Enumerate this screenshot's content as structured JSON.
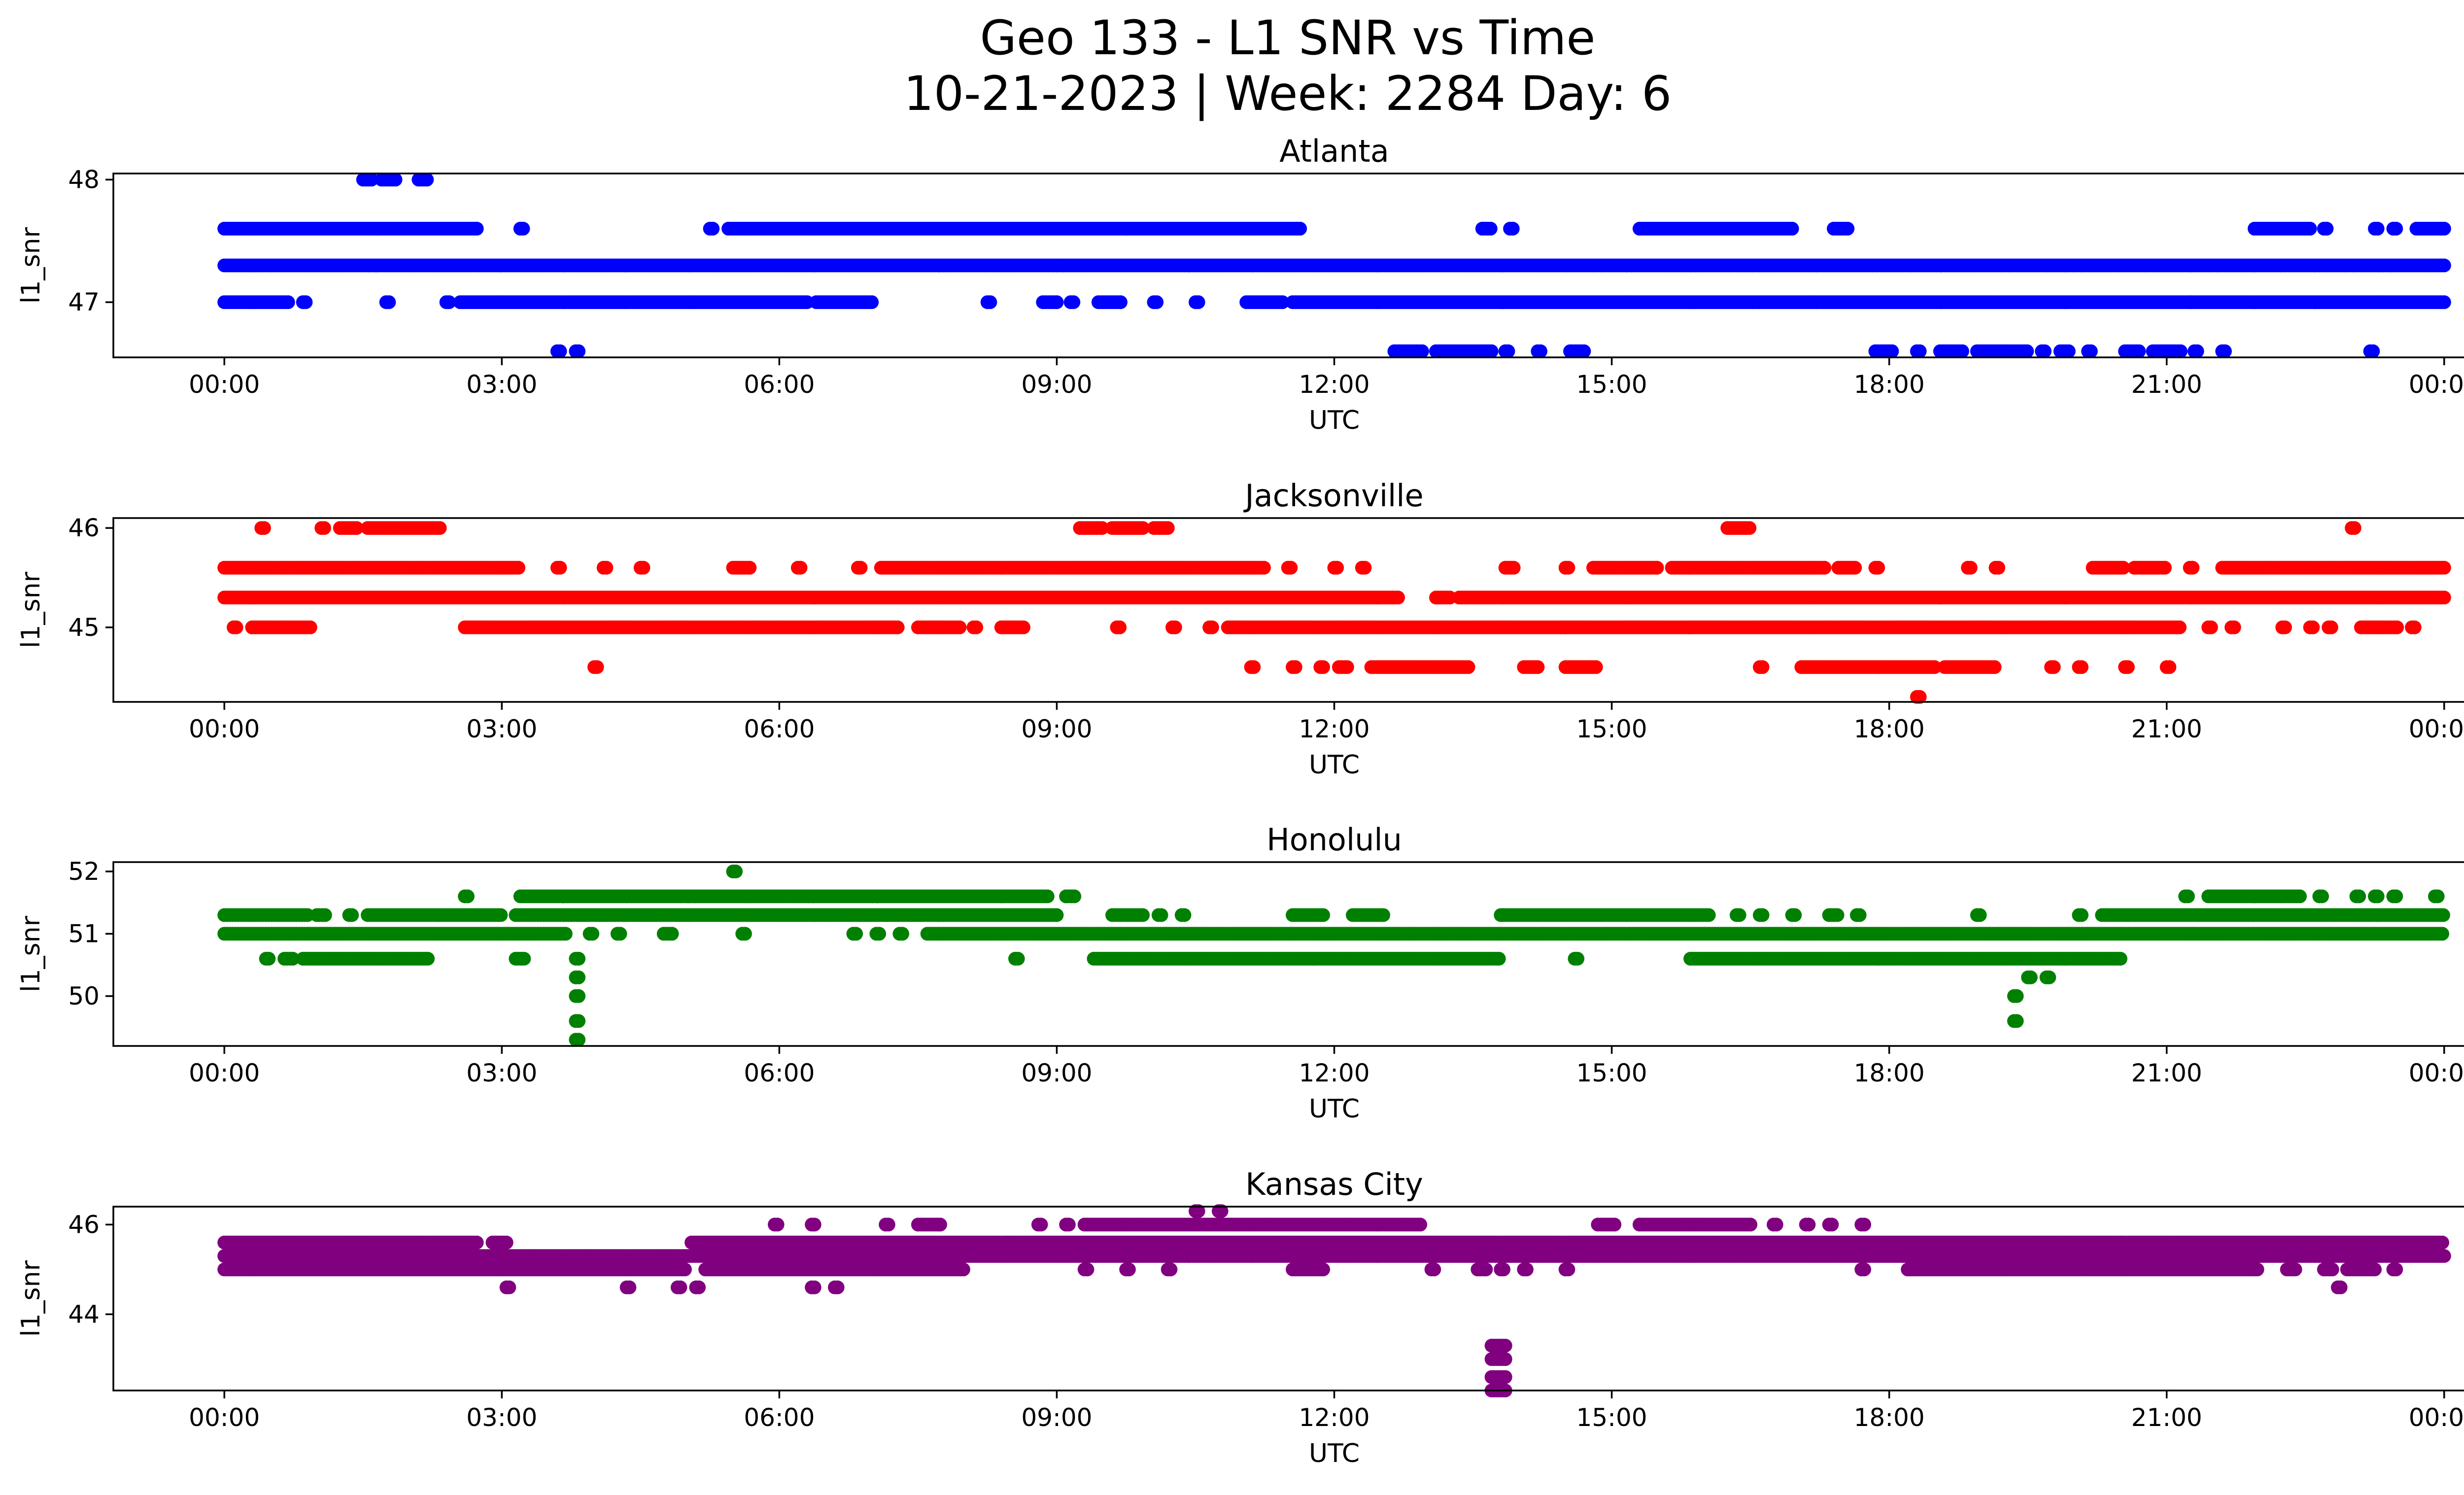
{
  "figure": {
    "title_line1": "Geo 133 - L1 SNR vs Time",
    "title_line2": "10-21-2023 | Week: 2284 Day: 6"
  },
  "chart_data": [
    {
      "type": "scatter",
      "title": "Atlanta",
      "xlabel": "UTC",
      "ylabel": "l1_snr",
      "color": "#0000ff",
      "x_ticks": [
        "00:00",
        "03:00",
        "06:00",
        "09:00",
        "12:00",
        "15:00",
        "18:00",
        "21:00",
        "00:00"
      ],
      "y_ticks": [
        47,
        48
      ],
      "xlim_hours": [
        -1.2,
        25.2
      ],
      "ylim": [
        46.55,
        48.05
      ],
      "levels": [
        {
          "y": 48.0,
          "ranges": [
            [
              1.5,
              1.6
            ],
            [
              1.7,
              1.85
            ],
            [
              2.1,
              2.2
            ]
          ]
        },
        {
          "y": 47.6,
          "ranges": [
            [
              0.0,
              2.75
            ],
            [
              3.2,
              3.25
            ],
            [
              5.25,
              5.3
            ],
            [
              5.45,
              11.65
            ],
            [
              13.6,
              13.7
            ],
            [
              13.9,
              13.95
            ],
            [
              15.3,
              16.95
            ],
            [
              17.4,
              17.55
            ],
            [
              21.95,
              22.55
            ],
            [
              22.7,
              22.75
            ],
            [
              23.25,
              23.3
            ],
            [
              23.45,
              23.5
            ],
            [
              23.7,
              24.0
            ]
          ]
        },
        {
          "y": 47.3,
          "ranges": [
            [
              0.0,
              24.0
            ]
          ]
        },
        {
          "y": 47.0,
          "ranges": [
            [
              0.0,
              0.7
            ],
            [
              0.85,
              0.9
            ],
            [
              1.75,
              1.8
            ],
            [
              2.4,
              2.45
            ],
            [
              2.55,
              6.3
            ],
            [
              6.4,
              7.0
            ],
            [
              8.25,
              8.3
            ],
            [
              8.85,
              9.0
            ],
            [
              9.15,
              9.2
            ],
            [
              9.45,
              9.7
            ],
            [
              10.05,
              10.1
            ],
            [
              10.5,
              10.55
            ],
            [
              11.05,
              11.45
            ],
            [
              11.55,
              24.0
            ]
          ]
        },
        {
          "y": 46.6,
          "ranges": [
            [
              3.6,
              3.65
            ],
            [
              3.8,
              3.85
            ],
            [
              12.65,
              12.95
            ],
            [
              13.1,
              13.7
            ],
            [
              13.85,
              13.9
            ],
            [
              14.2,
              14.25
            ],
            [
              14.55,
              14.7
            ],
            [
              17.85,
              18.05
            ],
            [
              18.3,
              18.35
            ],
            [
              18.55,
              18.8
            ],
            [
              18.95,
              19.5
            ],
            [
              19.65,
              19.7
            ],
            [
              19.85,
              19.95
            ],
            [
              20.15,
              20.2
            ],
            [
              20.55,
              20.7
            ],
            [
              20.85,
              21.15
            ],
            [
              21.3,
              21.35
            ],
            [
              21.6,
              21.65
            ],
            [
              23.2,
              23.25
            ]
          ]
        }
      ]
    },
    {
      "type": "scatter",
      "title": "Jacksonville",
      "xlabel": "UTC",
      "ylabel": "l1_snr",
      "color": "#ff0000",
      "x_ticks": [
        "00:00",
        "03:00",
        "06:00",
        "09:00",
        "12:00",
        "15:00",
        "18:00",
        "21:00",
        "00:00"
      ],
      "y_ticks": [
        45,
        46
      ],
      "xlim_hours": [
        -1.2,
        25.2
      ],
      "ylim": [
        44.25,
        46.1
      ],
      "levels": [
        {
          "y": 46.0,
          "ranges": [
            [
              0.4,
              0.45
            ],
            [
              1.05,
              1.1
            ],
            [
              1.25,
              1.45
            ],
            [
              1.55,
              2.35
            ],
            [
              9.25,
              9.5
            ],
            [
              9.6,
              9.95
            ],
            [
              10.05,
              10.2
            ],
            [
              16.25,
              16.5
            ],
            [
              23.0,
              23.05
            ]
          ]
        },
        {
          "y": 45.6,
          "ranges": [
            [
              0.0,
              3.2
            ],
            [
              3.6,
              3.65
            ],
            [
              4.1,
              4.15
            ],
            [
              4.5,
              4.55
            ],
            [
              5.5,
              5.7
            ],
            [
              6.2,
              6.25
            ],
            [
              6.85,
              6.9
            ],
            [
              7.1,
              11.25
            ],
            [
              11.5,
              11.55
            ],
            [
              12.0,
              12.05
            ],
            [
              12.3,
              12.35
            ],
            [
              13.85,
              13.95
            ],
            [
              14.5,
              14.55
            ],
            [
              14.8,
              15.5
            ],
            [
              15.65,
              17.3
            ],
            [
              17.45,
              17.65
            ],
            [
              17.85,
              17.9
            ],
            [
              18.85,
              18.9
            ],
            [
              19.15,
              19.2
            ],
            [
              20.2,
              20.55
            ],
            [
              20.65,
              21.0
            ],
            [
              21.25,
              21.3
            ],
            [
              21.6,
              24.0
            ]
          ]
        },
        {
          "y": 45.3,
          "ranges": [
            [
              0.0,
              12.7
            ],
            [
              13.1,
              13.25
            ],
            [
              13.35,
              24.0
            ]
          ]
        },
        {
          "y": 45.0,
          "ranges": [
            [
              0.1,
              0.15
            ],
            [
              0.3,
              0.95
            ],
            [
              2.6,
              7.3
            ],
            [
              7.5,
              7.95
            ],
            [
              8.1,
              8.15
            ],
            [
              8.4,
              8.65
            ],
            [
              9.65,
              9.7
            ],
            [
              10.25,
              10.3
            ],
            [
              10.65,
              10.7
            ],
            [
              10.85,
              21.15
            ],
            [
              21.45,
              21.5
            ],
            [
              21.7,
              21.75
            ],
            [
              22.25,
              22.3
            ],
            [
              22.55,
              22.6
            ],
            [
              22.75,
              22.8
            ],
            [
              23.1,
              23.5
            ],
            [
              23.65,
              23.7
            ]
          ]
        },
        {
          "y": 44.6,
          "ranges": [
            [
              4.0,
              4.05
            ],
            [
              11.1,
              11.15
            ],
            [
              11.55,
              11.6
            ],
            [
              11.85,
              11.9
            ],
            [
              12.05,
              12.15
            ],
            [
              12.4,
              13.45
            ],
            [
              14.05,
              14.2
            ],
            [
              14.5,
              14.85
            ],
            [
              16.6,
              16.65
            ],
            [
              17.05,
              18.5
            ],
            [
              18.6,
              19.15
            ],
            [
              19.75,
              19.8
            ],
            [
              20.05,
              20.1
            ],
            [
              20.55,
              20.6
            ],
            [
              21.0,
              21.05
            ]
          ]
        },
        {
          "y": 44.3,
          "ranges": [
            [
              18.3,
              18.35
            ]
          ]
        }
      ]
    },
    {
      "type": "scatter",
      "title": "Honolulu",
      "xlabel": "UTC",
      "ylabel": "l1_snr",
      "color": "#008000",
      "x_ticks": [
        "00:00",
        "03:00",
        "06:00",
        "09:00",
        "12:00",
        "15:00",
        "18:00",
        "21:00",
        "00:00"
      ],
      "y_ticks": [
        50,
        51,
        52
      ],
      "xlim_hours": [
        -1.2,
        25.2
      ],
      "ylim": [
        49.2,
        52.15
      ],
      "levels": [
        {
          "y": 52.0,
          "ranges": [
            [
              5.5,
              5.55
            ]
          ]
        },
        {
          "y": 51.6,
          "ranges": [
            [
              2.6,
              2.65
            ],
            [
              3.2,
              8.9
            ],
            [
              9.1,
              9.2
            ],
            [
              21.2,
              21.25
            ],
            [
              21.45,
              22.45
            ],
            [
              22.65,
              22.7
            ],
            [
              23.05,
              23.1
            ],
            [
              23.25,
              23.3
            ],
            [
              23.45,
              23.5
            ],
            [
              23.9,
              23.95
            ]
          ]
        },
        {
          "y": 51.3,
          "ranges": [
            [
              0.0,
              0.9
            ],
            [
              1.0,
              1.1
            ],
            [
              1.35,
              1.4
            ],
            [
              1.55,
              3.0
            ],
            [
              3.15,
              9.0
            ],
            [
              9.6,
              9.95
            ],
            [
              10.1,
              10.15
            ],
            [
              10.35,
              10.4
            ],
            [
              11.55,
              11.9
            ],
            [
              12.2,
              12.55
            ],
            [
              13.8,
              16.05
            ],
            [
              16.35,
              16.4
            ],
            [
              16.6,
              16.65
            ],
            [
              16.95,
              17.0
            ],
            [
              17.35,
              17.45
            ],
            [
              17.65,
              17.7
            ],
            [
              18.95,
              19.0
            ],
            [
              20.05,
              20.1
            ],
            [
              20.3,
              24.0
            ]
          ]
        },
        {
          "y": 51.0,
          "ranges": [
            [
              0.0,
              3.7
            ],
            [
              3.95,
              4.0
            ],
            [
              4.25,
              4.3
            ],
            [
              4.75,
              4.85
            ],
            [
              5.6,
              5.65
            ],
            [
              6.8,
              6.85
            ],
            [
              7.05,
              7.1
            ],
            [
              7.3,
              7.35
            ],
            [
              7.6,
              24.0
            ]
          ]
        },
        {
          "y": 50.6,
          "ranges": [
            [
              0.45,
              0.5
            ],
            [
              0.65,
              0.75
            ],
            [
              0.85,
              2.2
            ],
            [
              3.15,
              3.25
            ],
            [
              3.8,
              3.85
            ],
            [
              8.55,
              8.6
            ],
            [
              9.4,
              13.8
            ],
            [
              14.6,
              14.65
            ],
            [
              15.85,
              20.5
            ]
          ]
        },
        {
          "y": 50.3,
          "ranges": [
            [
              3.8,
              3.85
            ],
            [
              19.5,
              19.55
            ],
            [
              19.7,
              19.75
            ]
          ]
        },
        {
          "y": 50.0,
          "ranges": [
            [
              3.8,
              3.85
            ],
            [
              19.35,
              19.4
            ]
          ]
        },
        {
          "y": 49.6,
          "ranges": [
            [
              3.8,
              3.85
            ],
            [
              19.35,
              19.4
            ]
          ]
        },
        {
          "y": 49.3,
          "ranges": [
            [
              3.8,
              3.85
            ]
          ]
        }
      ]
    },
    {
      "type": "scatter",
      "title": "Kansas City",
      "xlabel": "UTC",
      "ylabel": "l1_snr",
      "color": "#800080",
      "x_ticks": [
        "00:00",
        "03:00",
        "06:00",
        "09:00",
        "12:00",
        "15:00",
        "18:00",
        "21:00",
        "00:00"
      ],
      "y_ticks": [
        44,
        46
      ],
      "xlim_hours": [
        -1.2,
        25.2
      ],
      "ylim": [
        42.3,
        46.4
      ],
      "levels": [
        {
          "y": 46.3,
          "ranges": [
            [
              10.5,
              10.55
            ],
            [
              10.75,
              10.8
            ]
          ]
        },
        {
          "y": 46.0,
          "ranges": [
            [
              5.95,
              6.0
            ],
            [
              6.35,
              6.4
            ],
            [
              7.15,
              7.2
            ],
            [
              7.5,
              7.75
            ],
            [
              8.8,
              8.85
            ],
            [
              9.1,
              9.15
            ],
            [
              9.3,
              12.95
            ],
            [
              14.85,
              15.05
            ],
            [
              15.3,
              16.5
            ],
            [
              16.75,
              16.8
            ],
            [
              17.1,
              17.15
            ],
            [
              17.35,
              17.4
            ],
            [
              17.7,
              17.75
            ]
          ]
        },
        {
          "y": 45.6,
          "ranges": [
            [
              0.0,
              2.75
            ],
            [
              2.9,
              3.05
            ],
            [
              5.05,
              24.0
            ]
          ]
        },
        {
          "y": 45.3,
          "ranges": [
            [
              0.0,
              24.0
            ]
          ]
        },
        {
          "y": 45.0,
          "ranges": [
            [
              0.0,
              5.0
            ],
            [
              5.2,
              8.0
            ],
            [
              9.3,
              9.35
            ],
            [
              9.75,
              9.8
            ],
            [
              10.2,
              10.25
            ],
            [
              11.55,
              11.9
            ],
            [
              13.05,
              13.1
            ],
            [
              13.55,
              13.65
            ],
            [
              13.8,
              13.85
            ],
            [
              14.05,
              14.1
            ],
            [
              14.5,
              14.55
            ],
            [
              17.7,
              17.75
            ],
            [
              18.2,
              22.0
            ],
            [
              22.3,
              22.4
            ],
            [
              22.7,
              22.8
            ],
            [
              22.95,
              23.25
            ],
            [
              23.45,
              23.5
            ]
          ]
        },
        {
          "y": 44.6,
          "ranges": [
            [
              3.05,
              3.1
            ],
            [
              4.35,
              4.4
            ],
            [
              4.9,
              4.95
            ],
            [
              5.1,
              5.15
            ],
            [
              6.35,
              6.4
            ],
            [
              6.6,
              6.65
            ],
            [
              22.85,
              22.9
            ]
          ]
        },
        {
          "y": 43.3,
          "ranges": [
            [
              13.7,
              13.85
            ]
          ]
        },
        {
          "y": 43.0,
          "ranges": [
            [
              13.7,
              13.85
            ]
          ]
        },
        {
          "y": 42.6,
          "ranges": [
            [
              13.7,
              13.85
            ]
          ]
        },
        {
          "y": 42.3,
          "ranges": [
            [
              13.7,
              13.85
            ]
          ]
        }
      ]
    }
  ]
}
